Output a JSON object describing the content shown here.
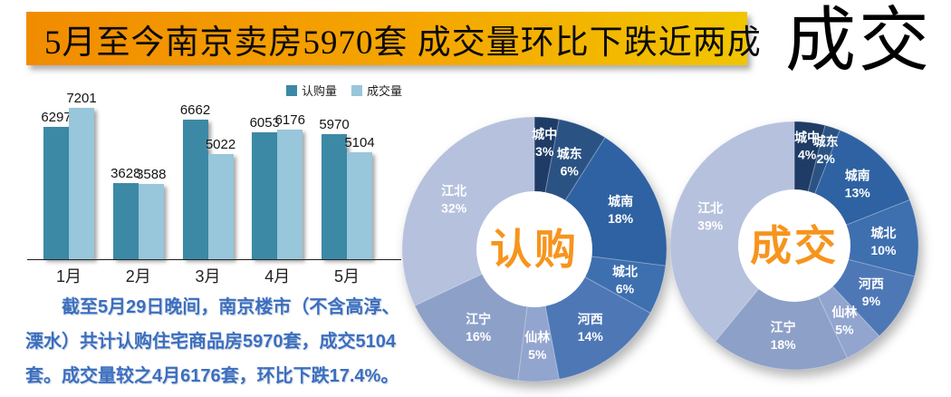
{
  "banner": {
    "title": "5月至今南京卖房5970套 成交量环比下跌近两成",
    "bg_gradient": [
      "#F18C00",
      "#F1C500"
    ],
    "text_color": "#0a0a0a"
  },
  "watermark": {
    "text": "成交"
  },
  "summary": {
    "text": "截至5月29日晚间，南京楼市（不含高淳、溧水）共计认购住宅商品房5970套，成交5104套。成交量较之4月6176套，环比下跌17.4%。",
    "color": "#3B6FC0"
  },
  "chart_data": [
    {
      "id": "monthly-bar-chart",
      "type": "bar",
      "categories": [
        "1月",
        "2月",
        "3月",
        "4月",
        "5月"
      ],
      "series": [
        {
          "name": "认购量",
          "color": "#3C89A6",
          "values": [
            6297,
            3628,
            6662,
            6053,
            5970
          ]
        },
        {
          "name": "成交量",
          "color": "#98C6DA",
          "values": [
            7201,
            3588,
            5022,
            6176,
            5104
          ]
        }
      ],
      "ylim": [
        0,
        7201
      ],
      "grid": false,
      "legend_position": "top-right",
      "value_labels": true
    },
    {
      "id": "rengou-donut",
      "type": "pie",
      "title": "认购",
      "title_color": "#F7941D",
      "labels": [
        "城中",
        "城东",
        "城南",
        "城北",
        "河西",
        "仙林",
        "江宁",
        "江北"
      ],
      "values": [
        3,
        6,
        18,
        6,
        14,
        5,
        16,
        32
      ],
      "unit": "%",
      "colors": [
        "#1F3C66",
        "#2A5384",
        "#2E62A2",
        "#3E6FAF",
        "#4E77B6",
        "#92A5CF",
        "#8DA0C8",
        "#B6C1DD"
      ],
      "label_color": "#FFFFFF",
      "start_angle_deg": 0,
      "direction": "clockwise"
    },
    {
      "id": "chengjiao-donut",
      "type": "pie",
      "title": "成交",
      "title_color": "#F7941D",
      "labels": [
        "城中",
        "城东",
        "城南",
        "城北",
        "河西",
        "仙林",
        "江宁",
        "江北"
      ],
      "values": [
        4,
        2,
        13,
        10,
        9,
        5,
        18,
        39
      ],
      "unit": "%",
      "colors": [
        "#1F3C66",
        "#2A5384",
        "#2E62A2",
        "#3E6FAF",
        "#4E77B6",
        "#92A5CF",
        "#8DA0C8",
        "#B6C1DD"
      ],
      "label_color": "#FFFFFF",
      "start_angle_deg": 0,
      "direction": "clockwise"
    }
  ]
}
